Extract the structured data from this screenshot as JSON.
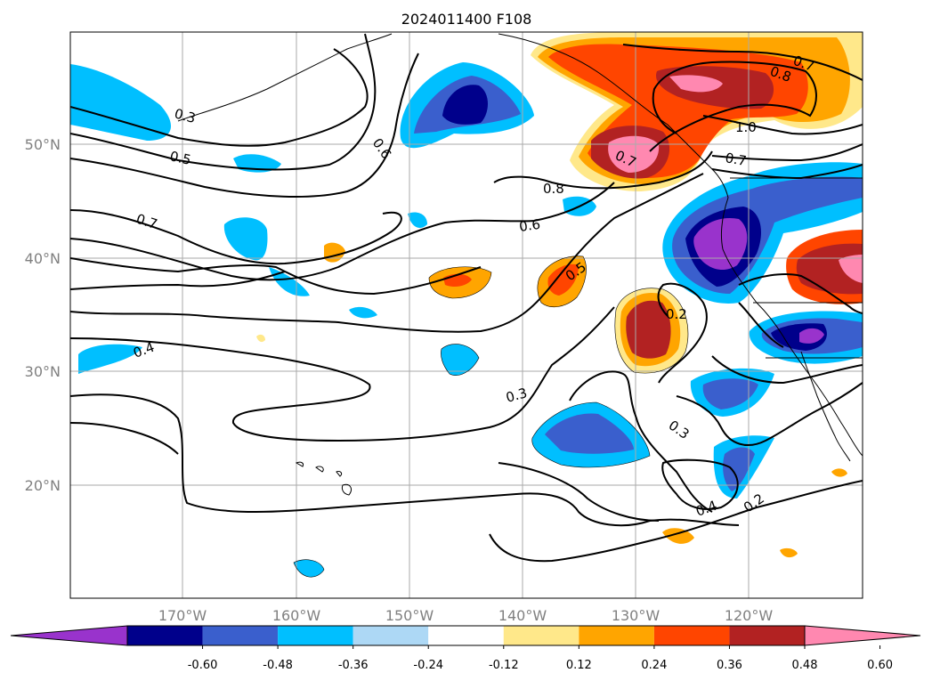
{
  "title": "2024011400 F108",
  "map": {
    "lon_ticks": [
      "170°W",
      "160°W",
      "150°W",
      "140°W",
      "130°W",
      "120°W"
    ],
    "lat_ticks": [
      "50°N",
      "40°N",
      "30°N",
      "20°N"
    ],
    "grid": true
  },
  "contour_labels": [
    "0.3",
    "0.5",
    "0.6",
    "0.7",
    "0.4",
    "0.8",
    "0.6",
    "0.5",
    "0.7",
    "0.8",
    "0.7",
    "1.0",
    "0.7",
    "0.2",
    "0.3",
    "0.3",
    "0.4",
    "0.2"
  ],
  "colorbar": {
    "tick_labels": [
      "-0.60",
      "-0.48",
      "-0.36",
      "-0.24",
      "-0.12",
      "0.12",
      "0.24",
      "0.36",
      "0.48",
      "0.60"
    ],
    "colors": [
      "#9933cc",
      "#00008b",
      "#3a5fcd",
      "#00bfff",
      "#add8f5",
      "#ffffff",
      "#ffe88a",
      "#ffa500",
      "#ff4500",
      "#b22222",
      "#ff88b0"
    ]
  }
}
